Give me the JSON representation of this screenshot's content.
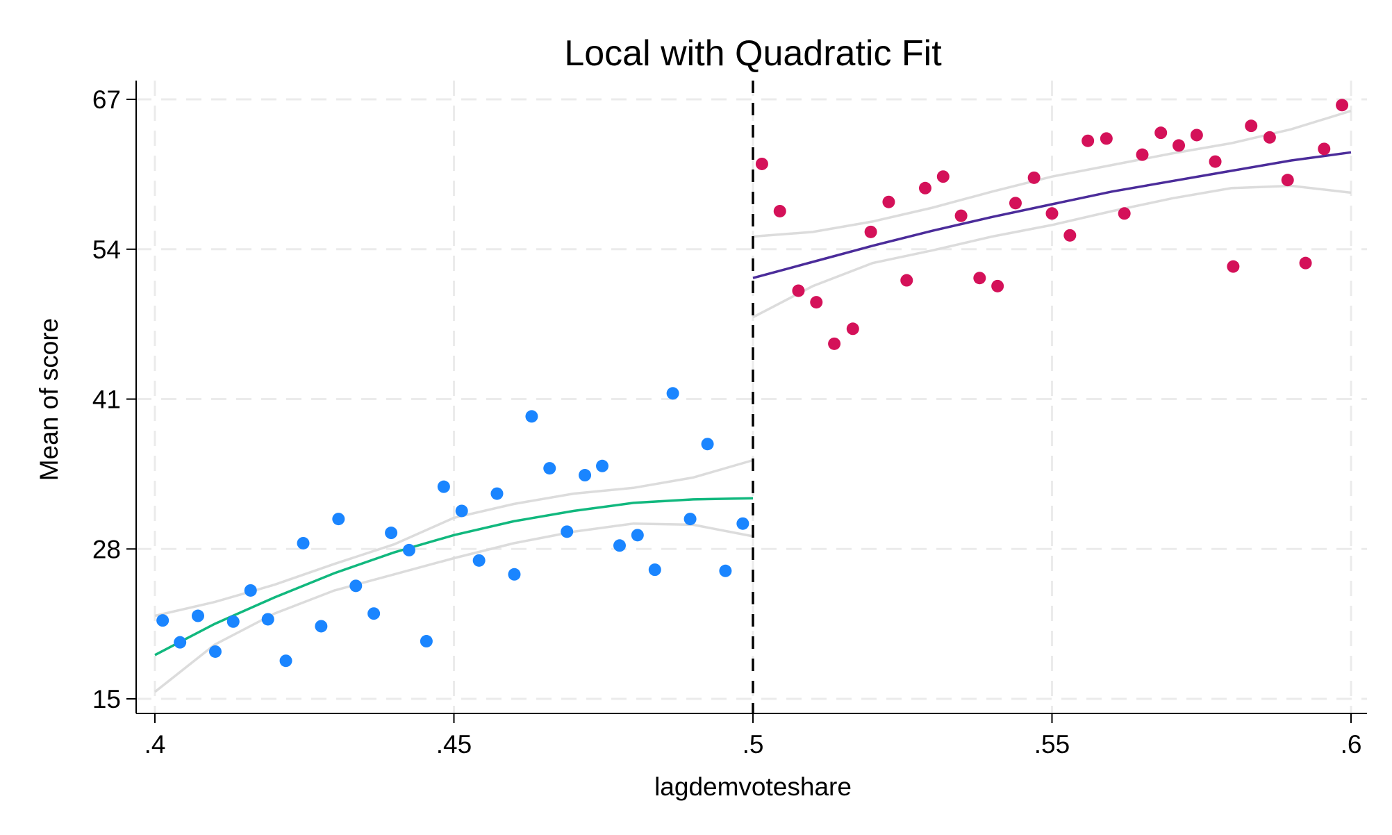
{
  "chart_data": {
    "type": "scatter",
    "title": "Local with Quadratic Fit",
    "xlabel": "lagdemvoteshare",
    "ylabel": "Mean of score",
    "xlim": [
      0.4,
      0.6
    ],
    "ylim": [
      15,
      67
    ],
    "xticks": [
      0.4,
      0.45,
      0.5,
      0.55,
      0.6
    ],
    "xtick_labels": [
      ".4",
      ".45",
      ".5",
      ".55",
      ".6"
    ],
    "yticks": [
      15,
      28,
      41,
      54,
      67
    ],
    "ytick_labels": [
      "15",
      "28",
      "41",
      "54",
      "67"
    ],
    "grid": true,
    "cutoff": 0.5,
    "colors": {
      "left_points": "#1a85ff",
      "right_points": "#d41159",
      "left_fit": "#11b87e",
      "right_fit": "#4b2c9a",
      "ci": "#dcdcdc",
      "cutoff": "#000000"
    },
    "left_points": {
      "x": [
        0.4013,
        0.4042,
        0.4072,
        0.4101,
        0.4131,
        0.416,
        0.4189,
        0.4219,
        0.4248,
        0.4278,
        0.4307,
        0.4336,
        0.4366,
        0.4395,
        0.4425,
        0.4454,
        0.4483,
        0.4513,
        0.4542,
        0.4572,
        0.4601,
        0.463,
        0.466,
        0.4689,
        0.4719,
        0.4748,
        0.4777,
        0.4807,
        0.4836,
        0.4866,
        0.4895,
        0.4924,
        0.4954,
        0.4983
      ],
      "y": [
        21.8,
        19.9,
        22.2,
        19.1,
        21.7,
        24.4,
        21.9,
        18.3,
        28.5,
        21.3,
        30.6,
        24.8,
        22.4,
        29.4,
        27.9,
        20.0,
        33.4,
        31.3,
        27.0,
        32.8,
        25.8,
        39.5,
        35.0,
        29.5,
        34.4,
        35.2,
        28.3,
        29.2,
        26.2,
        41.5,
        30.6,
        37.1,
        26.1,
        30.2
      ]
    },
    "right_points": {
      "x": [
        0.5015,
        0.5045,
        0.5076,
        0.5106,
        0.5136,
        0.5167,
        0.5197,
        0.5227,
        0.5257,
        0.5288,
        0.5318,
        0.5348,
        0.5379,
        0.5409,
        0.5439,
        0.547,
        0.55,
        0.553,
        0.556,
        0.5591,
        0.5621,
        0.5651,
        0.5682,
        0.5712,
        0.5742,
        0.5773,
        0.5803,
        0.5833,
        0.5864,
        0.5894,
        0.5924,
        0.5955,
        0.5985
      ],
      "y": [
        61.4,
        57.3,
        50.4,
        49.4,
        45.8,
        47.1,
        55.5,
        58.1,
        51.3,
        59.3,
        60.3,
        56.9,
        51.5,
        50.8,
        58.0,
        60.2,
        57.1,
        55.2,
        63.4,
        63.6,
        57.1,
        62.2,
        64.1,
        63.0,
        63.9,
        61.6,
        52.5,
        64.7,
        63.7,
        60.0,
        52.8,
        62.7,
        66.5
      ]
    },
    "left_fit": {
      "x": [
        0.4,
        0.41,
        0.42,
        0.43,
        0.44,
        0.45,
        0.46,
        0.47,
        0.48,
        0.49,
        0.5
      ],
      "y": [
        18.8,
        21.5,
        23.8,
        25.9,
        27.7,
        29.2,
        30.4,
        31.3,
        32.0,
        32.3,
        32.4
      ],
      "ci_upper": [
        22.2,
        23.4,
        24.9,
        26.7,
        28.4,
        30.7,
        31.9,
        32.8,
        33.3,
        34.2,
        35.7
      ],
      "ci_lower": [
        15.6,
        19.7,
        22.4,
        24.4,
        25.8,
        27.2,
        28.5,
        29.5,
        30.2,
        30.1,
        29.1
      ]
    },
    "right_fit": {
      "x": [
        0.5,
        0.51,
        0.52,
        0.53,
        0.54,
        0.55,
        0.56,
        0.57,
        0.58,
        0.59,
        0.6
      ],
      "y": [
        51.5,
        52.9,
        54.3,
        55.6,
        56.8,
        57.9,
        59.0,
        59.9,
        60.8,
        61.7,
        62.4
      ],
      "ci_upper": [
        55.1,
        55.5,
        56.4,
        57.6,
        59.0,
        60.3,
        61.3,
        62.3,
        63.2,
        64.4,
        66.0
      ],
      "ci_lower": [
        48.1,
        50.8,
        52.8,
        53.9,
        55.1,
        56.1,
        57.3,
        58.4,
        59.3,
        59.5,
        58.9
      ]
    }
  }
}
